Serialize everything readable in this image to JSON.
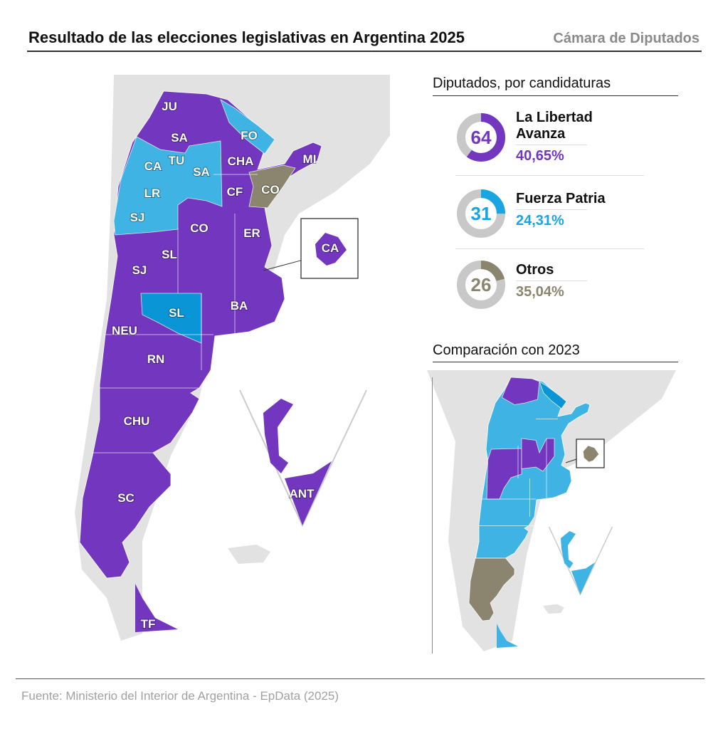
{
  "header": {
    "title": "Resultado de las elecciones legislativas en Argentina 2025",
    "subtitle": "Cámara de Diputados"
  },
  "colors": {
    "lla": "#7237be",
    "fp": "#3fb3e4",
    "fp_dark": "#0a95d6",
    "otros": "#8b8570",
    "land": "#e2e2e2",
    "ring": "#c8c8c8"
  },
  "results": {
    "title": "Diputados, por candidaturas",
    "parties": [
      {
        "name_line1": "La Libertad",
        "name_line2": "Avanza",
        "seats": "64",
        "pct": "40,65%",
        "color": "#7237be",
        "fill": 0.6
      },
      {
        "name_line1": "Fuerza Patria",
        "name_line2": "",
        "seats": "31",
        "pct": "24,31%",
        "color": "#1aa5e0",
        "fill": 0.25
      },
      {
        "name_line1": "Otros",
        "name_line2": "",
        "seats": "26",
        "pct": "35,04%",
        "color": "#8b8570",
        "fill": 0.21
      }
    ]
  },
  "main_map": {
    "labels": [
      "JU",
      "SA",
      "FO",
      "MI",
      "CHA",
      "CA",
      "TU",
      "SA",
      "LR",
      "CF",
      "CO",
      "SJ",
      "CO",
      "ER",
      "SL",
      "SJ",
      "CA",
      "BA",
      "SL",
      "NEU",
      "RN",
      "CHU",
      "SC",
      "TF",
      "ANT"
    ]
  },
  "comparison": {
    "title": "Comparación con 2023"
  },
  "footer": {
    "source": "Fuente: Ministerio del Interior de Argentina - EpData (2025)"
  }
}
